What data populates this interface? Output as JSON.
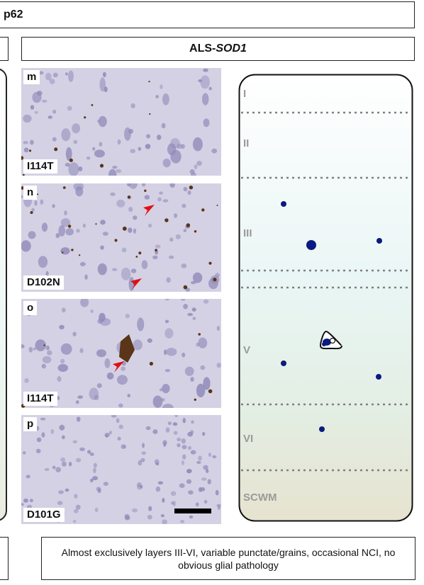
{
  "figure": {
    "stain_title": "p62",
    "group_prefix": "ALS-",
    "group_gene": "SOD1",
    "caption": "Almost exclusively layers III-VI, variable punctate/grains, occasional NCI, no obvious glial pathology"
  },
  "panels": [
    {
      "letter": "m",
      "mutation": "I114T"
    },
    {
      "letter": "n",
      "mutation": "D102N"
    },
    {
      "letter": "o",
      "mutation": "I114T"
    },
    {
      "letter": "p",
      "mutation": "D101G"
    }
  ],
  "layers": [
    "I",
    "II",
    "III",
    "V",
    "VI",
    "SCWM"
  ],
  "colors": {
    "nuclei": "#8f89b8",
    "inclusion": "#5a3518",
    "arrow": "#e01010",
    "dot": "#0b1a80",
    "layer_text": "#9a9a9a",
    "divider": "#808080"
  }
}
